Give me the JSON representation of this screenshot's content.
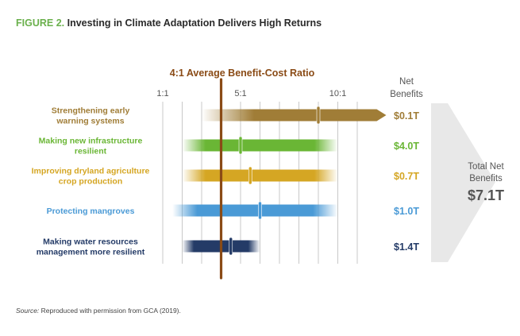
{
  "figure": {
    "label": "FIGURE 2.",
    "title": "Investing in Climate Adaptation Delivers High Returns"
  },
  "chart_data": {
    "type": "range-bar",
    "title": "Investing in Climate Adaptation Delivers High Returns",
    "reference_line": {
      "label": "4:1 Average Benefit-Cost Ratio",
      "value": 4
    },
    "x_ticks": [
      {
        "value": 1,
        "label": "1:1"
      },
      {
        "value": 5,
        "label": "5:1"
      },
      {
        "value": 10,
        "label": "10:1"
      }
    ],
    "xlim": [
      1,
      12
    ],
    "net_benefits_header": [
      "Net",
      "Benefits"
    ],
    "series": [
      {
        "name": "Strengthening early warning systems",
        "label_lines": [
          "Strengthening early",
          "warning systems"
        ],
        "color": "#a07d37",
        "low": 3,
        "high": 12,
        "point": 9,
        "open_ended": true,
        "net_benefit": "$0.1T"
      },
      {
        "name": "Making new infrastructure resilient",
        "label_lines": [
          "Making new infrastructure",
          "resilient"
        ],
        "color": "#6ab635",
        "low": 2,
        "high": 10,
        "point": 5,
        "open_ended": false,
        "net_benefit": "$4.0T"
      },
      {
        "name": "Improving dryland agriculture crop production",
        "label_lines": [
          "Improving dryland agriculture",
          "crop production"
        ],
        "color": "#d5a623",
        "low": 2,
        "high": 10,
        "point": 5.5,
        "open_ended": false,
        "net_benefit": "$0.7T"
      },
      {
        "name": "Protecting mangroves",
        "label_lines": [
          "Protecting mangroves"
        ],
        "color": "#4a9ad6",
        "low": 1.5,
        "high": 10,
        "point": 6,
        "open_ended": false,
        "net_benefit": "$1.0T"
      },
      {
        "name": "Making water resources management more resilient",
        "label_lines": [
          "Making water resources",
          "management more resilient"
        ],
        "color": "#243b67",
        "low": 2,
        "high": 6,
        "point": 4.5,
        "open_ended": false,
        "net_benefit": "$1.4T"
      }
    ],
    "total": {
      "label_lines": [
        "Total Net",
        "Benefits"
      ],
      "value": "$7.1T"
    },
    "colors": {
      "reference": "#8a4b16",
      "grid": "#c8c8c8",
      "total_arrow": "#e8e8e8",
      "title_accent": "#6ab04c"
    }
  },
  "source": {
    "prefix": "Source:",
    "text": " Reproduced with permission from GCA (2019)."
  }
}
